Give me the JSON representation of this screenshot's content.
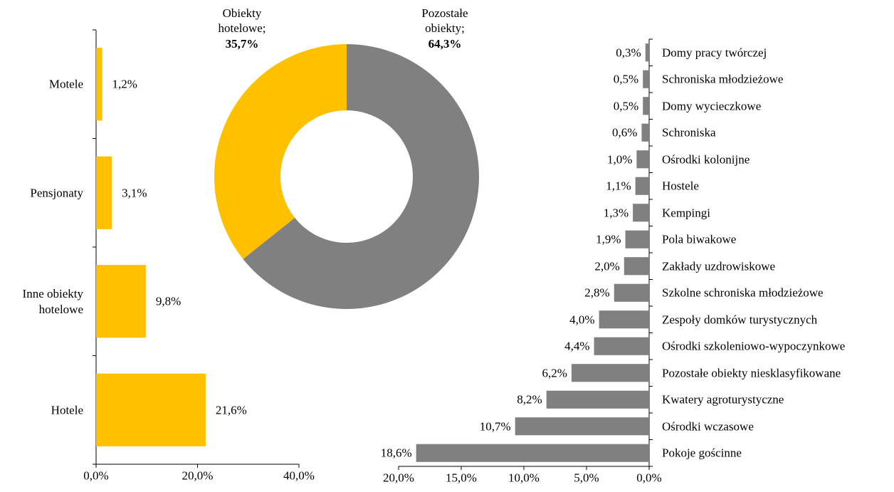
{
  "chart_data": [
    {
      "type": "bar",
      "categories": [
        "Motele",
        "Pensjonaty",
        "Inne obiekty hotelowe",
        "Hotele"
      ],
      "values": [
        1.2,
        3.1,
        9.8,
        21.6
      ],
      "value_labels": [
        "1,2%",
        "3,1%",
        "9,8%",
        "21,6%"
      ],
      "color": "#FFC000",
      "xlim": [
        0,
        40
      ],
      "xticks": [
        {
          "value": 0,
          "label": "0,0%"
        },
        {
          "value": 20,
          "label": "20,0%"
        },
        {
          "value": 40,
          "label": "40,0%"
        }
      ]
    },
    {
      "type": "pie",
      "categories": [
        "Obiekty hotelowe;",
        "Pozostałe obiekty;"
      ],
      "values": [
        35.7,
        64.3
      ],
      "value_labels": [
        "35,7%",
        "64,3%"
      ],
      "colors": [
        "#FFC000",
        "#808080"
      ],
      "donut": true
    },
    {
      "type": "bar",
      "categories": [
        "Domy pracy twórczej",
        "Schroniska młodzieżowe",
        "Domy wycieczkowe",
        "Schroniska",
        "Ośrodki kolonijne",
        "Hostele",
        "Kempingi",
        "Pola biwakowe",
        "Zakłady uzdrowiskowe",
        "Szkolne schroniska młodzieżowe",
        "Zespoły domków turystycznych",
        "Ośrodki szkoleniowo-wypoczynkowe",
        "Pozostałe obiekty niesklasyfikowane",
        "Kwatery agroturystyczne",
        "Ośrodki wczasowe",
        "Pokoje gościnne"
      ],
      "values": [
        0.3,
        0.5,
        0.5,
        0.6,
        1.0,
        1.1,
        1.3,
        1.9,
        2.0,
        2.8,
        4.0,
        4.4,
        6.2,
        8.2,
        10.7,
        18.6
      ],
      "value_labels": [
        "0,3%",
        "0,5%",
        "0,5%",
        "0,6%",
        "1,0%",
        "1,1%",
        "1,3%",
        "1,9%",
        "2,0%",
        "2,8%",
        "4,0%",
        "4,4%",
        "6,2%",
        "8,2%",
        "10,7%",
        "18,6%"
      ],
      "color": "#808080",
      "xlim": [
        0,
        20
      ],
      "x_reversed": true,
      "xticks": [
        {
          "value": 20,
          "label": "20,0%"
        },
        {
          "value": 15,
          "label": "15,0%"
        },
        {
          "value": 10,
          "label": "10,0%"
        },
        {
          "value": 5,
          "label": "5,0%"
        },
        {
          "value": 0,
          "label": "0,0%"
        }
      ]
    }
  ]
}
